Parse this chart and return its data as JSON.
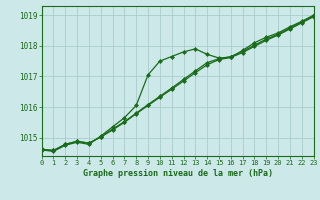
{
  "title": "Graphe pression niveau de la mer (hPa)",
  "bg_color": "#cce8e8",
  "grid_color": "#aacccc",
  "line_color": "#1a6b1a",
  "x_hours": [
    0,
    1,
    2,
    3,
    4,
    5,
    6,
    7,
    8,
    9,
    10,
    11,
    12,
    13,
    14,
    15,
    16,
    17,
    18,
    19,
    20,
    21,
    22,
    23
  ],
  "line1": [
    1014.6,
    1014.55,
    1014.75,
    1014.85,
    1014.78,
    1015.05,
    1015.35,
    1015.65,
    1016.05,
    1017.05,
    1017.5,
    1017.65,
    1017.8,
    1017.9,
    1017.72,
    1017.6,
    1017.62,
    1017.85,
    1018.1,
    1018.28,
    1018.42,
    1018.62,
    1018.8,
    1019.0
  ],
  "line2": [
    1014.62,
    1014.58,
    1014.78,
    1014.88,
    1014.82,
    1015.02,
    1015.28,
    1015.52,
    1015.8,
    1016.08,
    1016.35,
    1016.62,
    1016.9,
    1017.18,
    1017.45,
    1017.58,
    1017.65,
    1017.82,
    1018.02,
    1018.22,
    1018.38,
    1018.58,
    1018.78,
    1018.98
  ],
  "line3": [
    1014.62,
    1014.58,
    1014.78,
    1014.88,
    1014.82,
    1015.02,
    1015.25,
    1015.5,
    1015.78,
    1016.05,
    1016.32,
    1016.58,
    1016.85,
    1017.12,
    1017.38,
    1017.55,
    1017.62,
    1017.78,
    1017.98,
    1018.18,
    1018.35,
    1018.55,
    1018.75,
    1018.95
  ],
  "ylim": [
    1014.4,
    1019.3
  ],
  "yticks": [
    1015,
    1016,
    1017,
    1018,
    1019
  ],
  "xlim": [
    0,
    23
  ]
}
